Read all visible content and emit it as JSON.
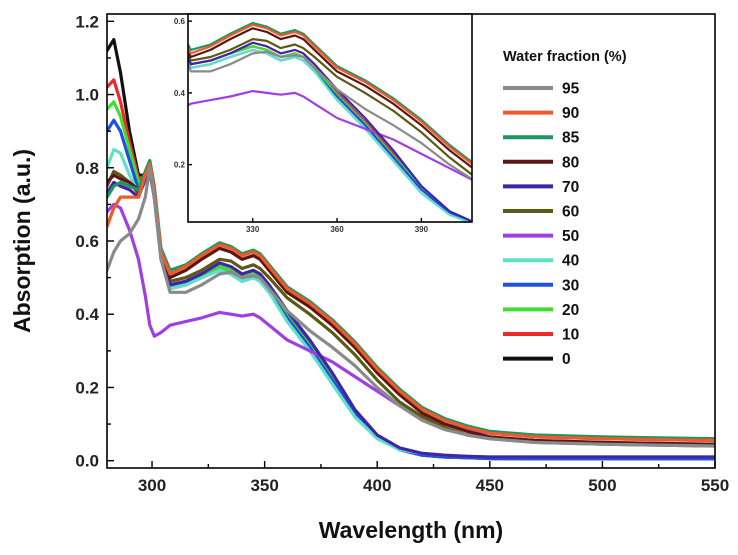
{
  "chart_data": {
    "type": "line",
    "title": "",
    "xlabel": "Wavelength (nm)",
    "ylabel": "Absorption (a.u.)",
    "xlim": [
      280,
      550
    ],
    "ylim": [
      -0.02,
      1.22
    ],
    "xticks": [
      "300",
      "350",
      "400",
      "450",
      "500",
      "550"
    ],
    "yticks": [
      "0.0",
      "0.2",
      "0.4",
      "0.6",
      "0.8",
      "1.0",
      "1.2"
    ],
    "legend_title": "Water fraction (%)",
    "legend_position": "right",
    "inset": {
      "xlim": [
        307,
        408
      ],
      "ylim": [
        0.04,
        0.62
      ],
      "xticks": [
        "330",
        "360",
        "390"
      ],
      "yticks": [
        "0.2",
        "0.4",
        "0.6"
      ]
    },
    "x": [
      280,
      283,
      286,
      290,
      294,
      297,
      299,
      301,
      304,
      308,
      315,
      322,
      330,
      335,
      340,
      345,
      348,
      352,
      360,
      370,
      380,
      390,
      400,
      410,
      420,
      430,
      440,
      450,
      470,
      500,
      550
    ],
    "series": [
      {
        "name": "95",
        "color": "#8a8a8a",
        "values": [
          0.52,
          0.57,
          0.6,
          0.62,
          0.66,
          0.72,
          0.8,
          0.72,
          0.55,
          0.46,
          0.46,
          0.48,
          0.51,
          0.515,
          0.5,
          0.505,
          0.5,
          0.47,
          0.41,
          0.355,
          0.31,
          0.26,
          0.2,
          0.15,
          0.11,
          0.085,
          0.07,
          0.06,
          0.05,
          0.045,
          0.04
        ]
      },
      {
        "name": "90",
        "color": "#ee5a2a",
        "values": [
          0.64,
          0.69,
          0.72,
          0.72,
          0.72,
          0.78,
          0.81,
          0.74,
          0.57,
          0.51,
          0.53,
          0.56,
          0.59,
          0.58,
          0.56,
          0.57,
          0.56,
          0.53,
          0.47,
          0.43,
          0.38,
          0.32,
          0.25,
          0.19,
          0.14,
          0.11,
          0.09,
          0.075,
          0.065,
          0.06,
          0.055
        ]
      },
      {
        "name": "85",
        "color": "#1e9660",
        "values": [
          0.72,
          0.75,
          0.76,
          0.75,
          0.74,
          0.79,
          0.82,
          0.75,
          0.58,
          0.52,
          0.535,
          0.565,
          0.595,
          0.585,
          0.565,
          0.575,
          0.565,
          0.535,
          0.475,
          0.435,
          0.385,
          0.325,
          0.255,
          0.195,
          0.145,
          0.115,
          0.095,
          0.08,
          0.07,
          0.065,
          0.06
        ]
      },
      {
        "name": "80",
        "color": "#5c1616",
        "values": [
          0.76,
          0.78,
          0.77,
          0.76,
          0.74,
          0.78,
          0.8,
          0.73,
          0.57,
          0.5,
          0.52,
          0.55,
          0.58,
          0.57,
          0.55,
          0.56,
          0.55,
          0.52,
          0.46,
          0.42,
          0.37,
          0.31,
          0.24,
          0.18,
          0.13,
          0.1,
          0.08,
          0.065,
          0.055,
          0.05,
          0.045
        ]
      },
      {
        "name": "70",
        "color": "#3f25a8",
        "values": [
          0.73,
          0.76,
          0.75,
          0.74,
          0.72,
          0.77,
          0.79,
          0.72,
          0.56,
          0.48,
          0.49,
          0.51,
          0.54,
          0.53,
          0.51,
          0.52,
          0.51,
          0.48,
          0.41,
          0.33,
          0.24,
          0.14,
          0.07,
          0.035,
          0.02,
          0.015,
          0.012,
          0.01,
          0.01,
          0.01,
          0.01
        ]
      },
      {
        "name": "60",
        "color": "#5a5a14",
        "values": [
          0.75,
          0.79,
          0.78,
          0.76,
          0.73,
          0.77,
          0.8,
          0.73,
          0.56,
          0.49,
          0.5,
          0.52,
          0.55,
          0.545,
          0.525,
          0.535,
          0.525,
          0.5,
          0.445,
          0.4,
          0.35,
          0.29,
          0.22,
          0.16,
          0.12,
          0.09,
          0.07,
          0.06,
          0.05,
          0.045,
          0.04
        ]
      },
      {
        "name": "50",
        "color": "#a03ee6",
        "values": [
          0.68,
          0.7,
          0.69,
          0.63,
          0.55,
          0.45,
          0.37,
          0.34,
          0.35,
          0.37,
          0.38,
          0.39,
          0.405,
          0.4,
          0.395,
          0.4,
          0.39,
          0.37,
          0.33,
          0.3,
          0.27,
          0.23,
          0.19,
          0.15,
          0.12,
          0.1,
          0.085,
          0.075,
          0.065,
          0.06,
          0.055
        ]
      },
      {
        "name": "40",
        "color": "#5fe0c8",
        "values": [
          0.8,
          0.85,
          0.84,
          0.78,
          0.73,
          0.76,
          0.79,
          0.72,
          0.55,
          0.47,
          0.48,
          0.5,
          0.52,
          0.51,
          0.49,
          0.5,
          0.49,
          0.46,
          0.38,
          0.3,
          0.21,
          0.12,
          0.06,
          0.03,
          0.02,
          0.015,
          0.012,
          0.01,
          0.01,
          0.01,
          0.01
        ]
      },
      {
        "name": "30",
        "color": "#2050e0",
        "values": [
          0.9,
          0.93,
          0.9,
          0.82,
          0.74,
          0.76,
          0.79,
          0.72,
          0.55,
          0.47,
          0.48,
          0.5,
          0.52,
          0.51,
          0.49,
          0.5,
          0.49,
          0.46,
          0.39,
          0.31,
          0.22,
          0.13,
          0.065,
          0.03,
          0.015,
          0.01,
          0.008,
          0.006,
          0.005,
          0.005,
          0.005
        ]
      },
      {
        "name": "20",
        "color": "#3ee030",
        "values": [
          0.96,
          0.98,
          0.94,
          0.85,
          0.76,
          0.77,
          0.8,
          0.73,
          0.56,
          0.48,
          0.49,
          0.51,
          0.53,
          0.52,
          0.5,
          0.51,
          0.5,
          0.47,
          0.395,
          0.315,
          0.225,
          0.135,
          0.065,
          0.03,
          0.015,
          0.01,
          0.008,
          0.006,
          0.005,
          0.005,
          0.005
        ]
      },
      {
        "name": "10",
        "color": "#f02828",
        "values": [
          1.02,
          1.04,
          0.98,
          0.87,
          0.77,
          0.77,
          0.8,
          0.73,
          0.56,
          0.48,
          0.49,
          0.51,
          0.53,
          0.52,
          0.5,
          0.51,
          0.5,
          0.47,
          0.4,
          0.32,
          0.23,
          0.135,
          0.065,
          0.03,
          0.015,
          0.01,
          0.008,
          0.006,
          0.005,
          0.005,
          0.005
        ]
      },
      {
        "name": "0",
        "color": "#111111",
        "values": [
          1.12,
          1.15,
          1.06,
          0.9,
          0.78,
          0.78,
          0.8,
          0.73,
          0.56,
          0.48,
          0.49,
          0.51,
          0.53,
          0.52,
          0.5,
          0.51,
          0.5,
          0.47,
          0.4,
          0.32,
          0.23,
          0.135,
          0.065,
          0.03,
          0.015,
          0.01,
          0.008,
          0.006,
          0.005,
          0.005,
          0.005
        ]
      }
    ]
  }
}
